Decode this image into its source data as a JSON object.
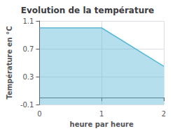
{
  "chart_data": {
    "type": "area",
    "title": "Evolution de la température",
    "xlabel": "heure par heure",
    "ylabel": "Température en °C",
    "x": [
      0,
      1,
      2
    ],
    "values": [
      1.0,
      1.0,
      0.45
    ],
    "xlim": [
      0,
      2
    ],
    "ylim": [
      -0.1,
      1.1
    ],
    "xticks": [
      0,
      1,
      2
    ],
    "yticks": [
      -0.1,
      0.3,
      0.7,
      1.1
    ],
    "grid": true,
    "color": "#5bb8d4"
  }
}
